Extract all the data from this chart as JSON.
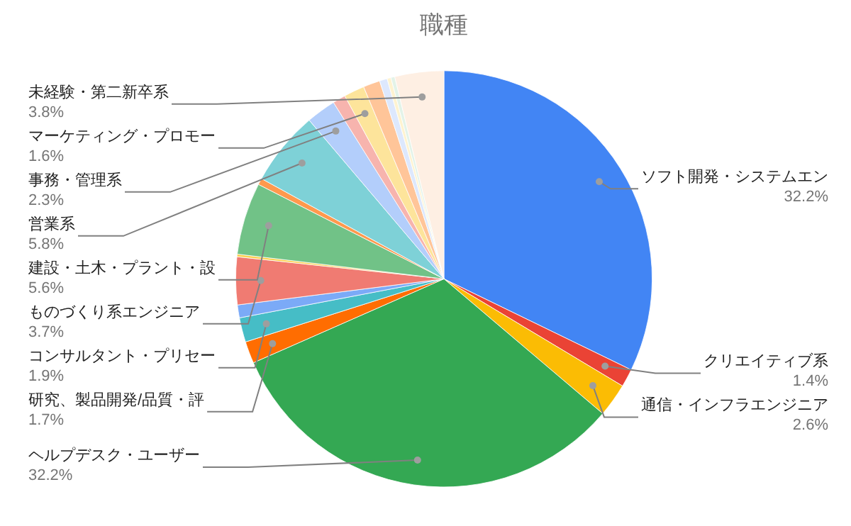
{
  "chart_data": {
    "type": "pie",
    "title": "職種",
    "legend": false,
    "categories": [
      "ソフト開発・システムエン",
      "クリエイティブ系",
      "通信・インフラエンジニア",
      "ヘルプデスク・ユーザー",
      "研究、製品開発/品質・評",
      "コンサルタント・プリセー",
      null,
      "ものづくり系エンジニア",
      null,
      "建設・土木・プラント・設",
      null,
      "営業系",
      "事務・管理系",
      null,
      "マーケティング・プロモー",
      null,
      null,
      null,
      null,
      "未経験・第二新卒系"
    ],
    "values": [
      32.2,
      1.4,
      2.6,
      32.2,
      1.7,
      1.9,
      1.0,
      3.7,
      0.2,
      5.6,
      0.5,
      5.8,
      2.3,
      1.0,
      1.6,
      1.3,
      0.6,
      0.3,
      0.3,
      3.8
    ],
    "value_labels": [
      "32.2%",
      "1.4%",
      "2.6%",
      "32.2%",
      "1.7%",
      "1.9%",
      null,
      "3.7%",
      null,
      "5.6%",
      null,
      "5.8%",
      "2.3%",
      null,
      "1.6%",
      null,
      null,
      null,
      null,
      "3.8%"
    ],
    "colors": [
      "#4285f4",
      "#ea4335",
      "#fbbc04",
      "#34a853",
      "#ff6d01",
      "#46bdc6",
      "#7baaf7",
      "#f07b72",
      "#fcd04f",
      "#71c287",
      "#ff994d",
      "#7ed1d7",
      "#b3cefb",
      "#f7b4ae",
      "#fde49b",
      "#ffc599",
      "#dde8fd",
      "#fef3d0",
      "#e3f3e8",
      "#feefe3"
    ]
  }
}
